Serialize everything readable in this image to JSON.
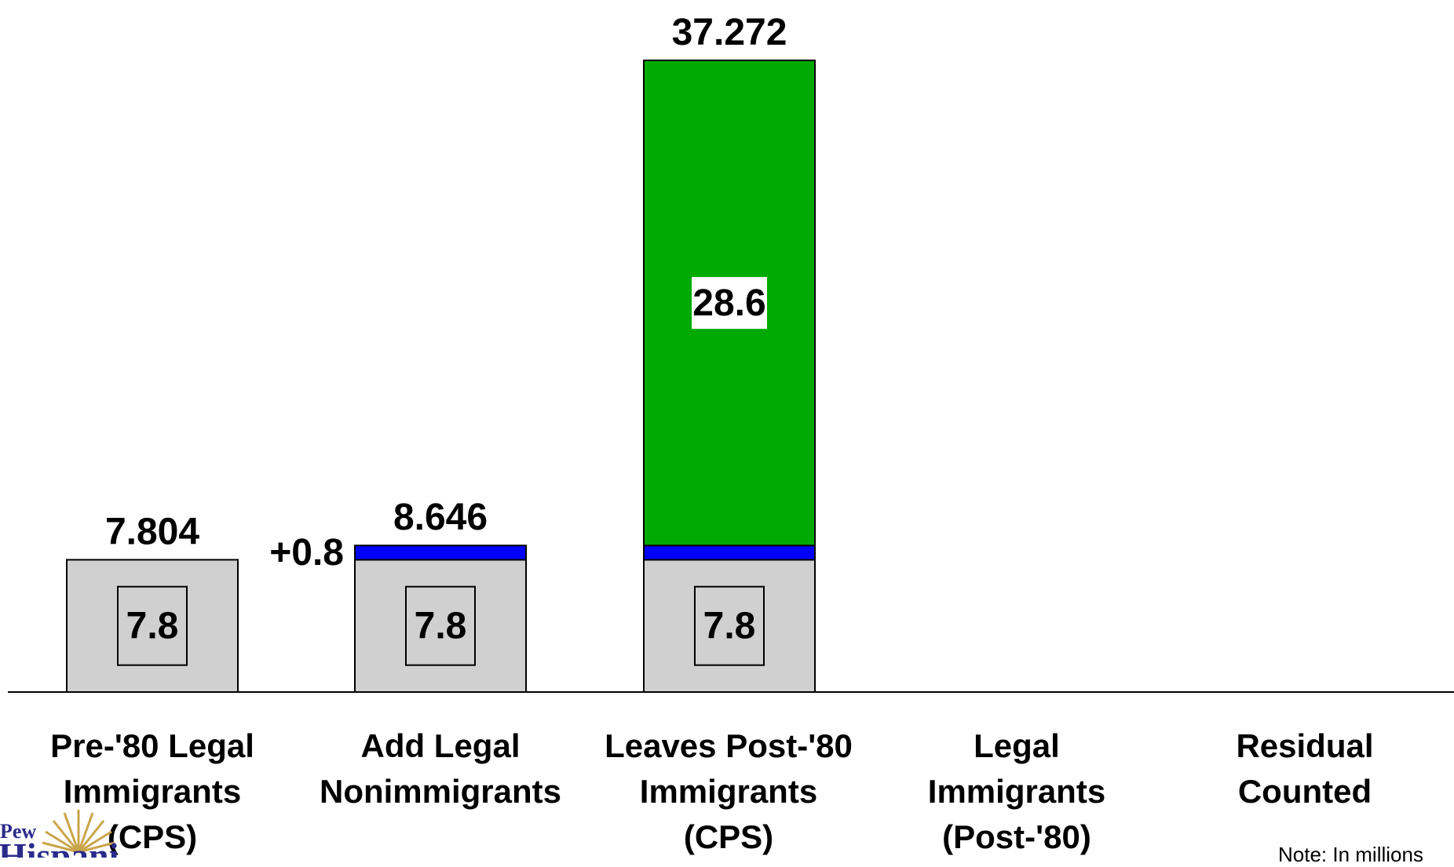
{
  "chart_data": {
    "type": "bar",
    "stacked": true,
    "categories": [
      [
        "Pre-'80 Legal",
        "Immigrants",
        "(CPS)"
      ],
      [
        "Add Legal",
        "Nonimmigrants"
      ],
      [
        "Leaves Post-'80",
        "Immigrants",
        "(CPS)"
      ],
      [
        "Legal",
        "Immigrants",
        "(Post-'80)"
      ],
      [
        "Residual",
        "Counted"
      ]
    ],
    "series": [
      {
        "values": [
          7.804,
          7.804,
          7.804,
          null,
          null
        ],
        "color": "#d0d0d0",
        "labels": [
          "7.8",
          "7.8",
          "7.8",
          "",
          ""
        ]
      },
      {
        "values": [
          0,
          0.842,
          0.842,
          null,
          null
        ],
        "color": "#0000ff",
        "labels": [
          "",
          "",
          "",
          "",
          ""
        ]
      },
      {
        "values": [
          0,
          0,
          28.626,
          null,
          null
        ],
        "color": "#00aa00",
        "labels": [
          "",
          "",
          "28.6",
          "",
          ""
        ]
      }
    ],
    "totals": [
      "7.804",
      "8.646",
      "37.272",
      "",
      ""
    ],
    "annotations": [
      {
        "text": "+0.8",
        "category_index": 1
      }
    ],
    "ylim": [
      0,
      39.5
    ],
    "grid": false,
    "legend": "none",
    "title": "",
    "xlabel": "",
    "ylabel": ""
  },
  "footer": {
    "note": "Note:  In millions",
    "logo_text_1": "Pew",
    "logo_text_2": "Hispanic"
  }
}
